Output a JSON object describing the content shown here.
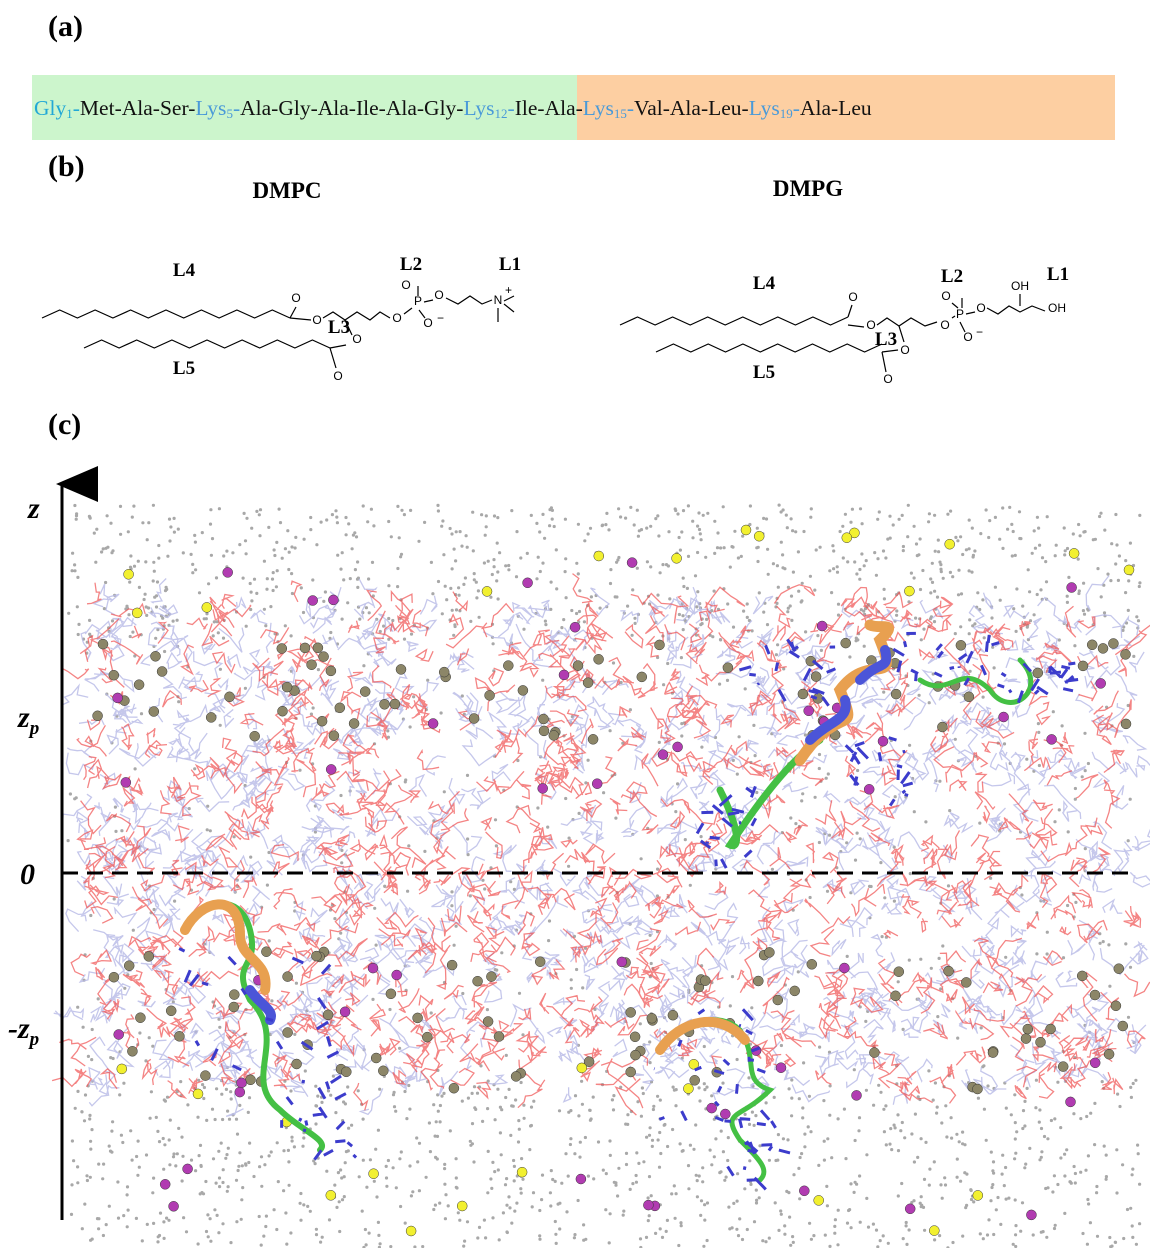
{
  "panels": {
    "a": "(a)",
    "b": "(b)",
    "c": "(c)"
  },
  "sequence": {
    "separator": "-",
    "residues": [
      {
        "name": "Gly",
        "index": "1",
        "highlight": true
      },
      {
        "name": "Met"
      },
      {
        "name": "Ala"
      },
      {
        "name": "Ser"
      },
      {
        "name": "Lys",
        "index": "5",
        "highlight": true
      },
      {
        "name": "Ala"
      },
      {
        "name": "Gly"
      },
      {
        "name": "Ala"
      },
      {
        "name": "Ile"
      },
      {
        "name": "Ala"
      },
      {
        "name": "Gly"
      },
      {
        "name": "Lys",
        "index": "12",
        "highlight": true
      },
      {
        "name": "Ile"
      },
      {
        "name": "Ala"
      },
      {
        "name": "Lys",
        "index": "15",
        "highlight": true
      },
      {
        "name": "Val"
      },
      {
        "name": "Ala"
      },
      {
        "name": "Leu"
      },
      {
        "name": "Lys",
        "index": "19",
        "highlight": true
      },
      {
        "name": "Ala"
      },
      {
        "name": "Leu"
      }
    ]
  },
  "dmpc": {
    "title": "DMPC",
    "groups": [
      "L1",
      "L2",
      "L3",
      "L4",
      "L5"
    ],
    "atoms": [
      "O",
      "O",
      "O",
      "O",
      "O",
      "P",
      "O",
      "O",
      "O",
      "N"
    ],
    "charges": [
      "−",
      "+"
    ]
  },
  "dmpg": {
    "title": "DMPG",
    "groups": [
      "L1",
      "L2",
      "L3",
      "L4",
      "L5"
    ],
    "atoms": [
      "O",
      "O",
      "O",
      "O",
      "O",
      "P",
      "O",
      "O",
      "O",
      "OH",
      "OH"
    ],
    "charges": [
      "−"
    ]
  },
  "axis": {
    "label": "z",
    "ticks": [
      {
        "text": "z",
        "sub": "p"
      },
      {
        "text": "0"
      },
      {
        "text": "-z",
        "sub": "p"
      }
    ]
  }
}
